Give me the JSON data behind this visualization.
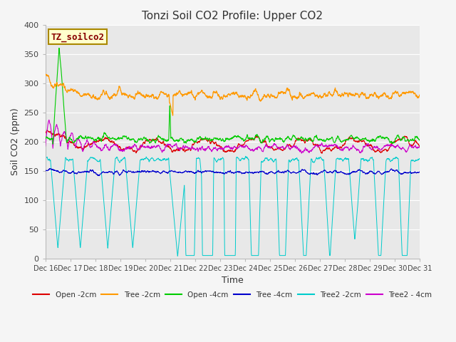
{
  "title": "Tonzi Soil CO2 Profile: Upper CO2",
  "xlabel": "Time",
  "ylabel": "Soil CO2 (ppm)",
  "ylim": [
    0,
    400
  ],
  "yticks": [
    0,
    50,
    100,
    150,
    200,
    250,
    300,
    350,
    400
  ],
  "x_ticks": [
    16,
    17,
    18,
    19,
    20,
    21,
    22,
    23,
    24,
    25,
    26,
    27,
    28,
    29,
    30,
    31
  ],
  "x_tick_labels": [
    "Dec 16",
    "Dec 17",
    "Dec 18",
    "Dec 19",
    "Dec 20",
    "Dec 21",
    "Dec 22",
    "Dec 23",
    "Dec 24",
    "Dec 25",
    "Dec 26",
    "Dec 27",
    "Dec 28",
    "Dec 29",
    "Dec 30",
    "Dec 31"
  ],
  "series_colors": {
    "Open -2cm": "#dd0000",
    "Tree -2cm": "#ff9900",
    "Open -4cm": "#00cc00",
    "Tree -4cm": "#0000cc",
    "Tree2 -2cm": "#00cccc",
    "Tree2 - 4cm": "#cc00cc"
  },
  "legend_box_color": "#ffffcc",
  "legend_box_edge": "#aa8800",
  "legend_label_color": "#880000",
  "label_box_text": "TZ_soilco2",
  "plot_bg_color": "#e8e8e8",
  "fig_bg_color": "#f5f5f5",
  "grid_color": "#ffffff",
  "n_points": 2000
}
